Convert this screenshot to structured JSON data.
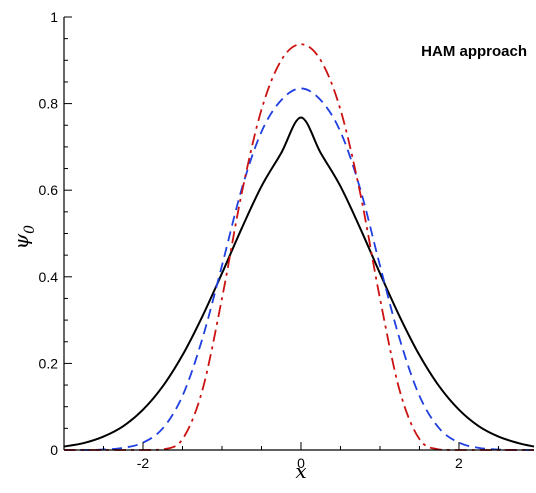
{
  "chart_data": {
    "type": "line",
    "title": "",
    "xlabel": "x",
    "ylabel": "ψ",
    "ylabel_subscript": "0",
    "xlim": [
      -3,
      2.95
    ],
    "ylim": [
      0,
      1
    ],
    "xticks": [
      -2,
      0,
      2
    ],
    "xtick_labels": [
      "-2",
      "0",
      "2"
    ],
    "yticks": [
      0,
      0.2,
      0.4,
      0.6,
      0.8,
      1
    ],
    "ytick_labels": [
      "0",
      "0.2",
      "0.4",
      "0.6",
      "0.8",
      "1"
    ],
    "grid": false,
    "annotation": "HAM approach",
    "x": [
      -3.0,
      -2.75,
      -2.5,
      -2.25,
      -2.0,
      -1.75,
      -1.5,
      -1.25,
      -1.0,
      -0.75,
      -0.5,
      -0.25,
      0.0,
      0.25,
      0.5,
      0.75,
      1.0,
      1.25,
      1.5,
      1.75,
      2.0,
      2.25,
      2.5,
      2.75,
      2.95
    ],
    "series": [
      {
        "style": "solid",
        "color": "#000000",
        "values": [
          0.008,
          0.016,
          0.031,
          0.055,
          0.093,
          0.147,
          0.219,
          0.308,
          0.408,
          0.512,
          0.609,
          0.686,
          0.768,
          0.686,
          0.609,
          0.512,
          0.408,
          0.308,
          0.219,
          0.147,
          0.093,
          0.055,
          0.031,
          0.016,
          0.008
        ]
      },
      {
        "style": "dashed",
        "color": "#1f3fe0",
        "values": [
          0.0,
          0.0,
          0.001,
          0.005,
          0.017,
          0.05,
          0.125,
          0.256,
          0.426,
          0.603,
          0.735,
          0.808,
          0.835,
          0.808,
          0.735,
          0.603,
          0.426,
          0.256,
          0.125,
          0.05,
          0.017,
          0.005,
          0.001,
          0.0,
          0.0
        ]
      },
      {
        "style": "dashdot",
        "color": "#cc1111",
        "values": [
          0.0,
          0.0,
          0.0,
          0.0,
          0.0,
          0.001,
          0.025,
          0.137,
          0.35,
          0.593,
          0.786,
          0.9,
          0.937,
          0.9,
          0.786,
          0.593,
          0.35,
          0.137,
          0.025,
          0.001,
          0.0,
          0.0,
          0.0,
          0.0,
          0.0
        ]
      }
    ]
  }
}
